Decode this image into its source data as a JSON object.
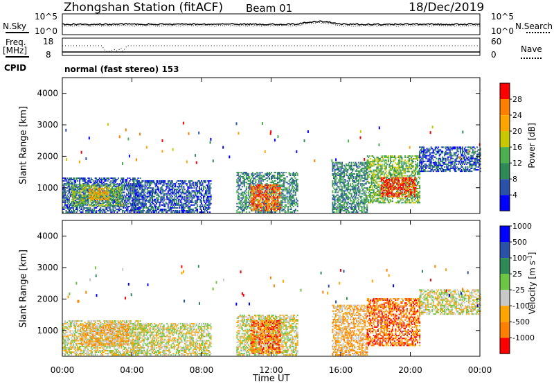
{
  "header": {
    "title": "Zhongshan Station (fitACF)",
    "beam": "Beam 01",
    "date": "18/Dec/2019"
  },
  "noise_panel": {
    "left_label": "N.Sky",
    "right_label": "N.Search",
    "left_ticks": [
      "10^5",
      "10^0"
    ],
    "right_ticks": [
      "10^5",
      "10^0"
    ]
  },
  "freq_panel": {
    "left_label_line1": "Freq.",
    "left_label_line2": "[MHz]",
    "right_label": "Nave",
    "left_ticks": [
      "18",
      "8"
    ],
    "right_ticks": [
      "60",
      "0"
    ]
  },
  "cpid": {
    "label": "CPID",
    "program": "normal (fast stereo) 153"
  },
  "x_axis": {
    "label": "Time UT",
    "ticks": [
      "00:00",
      "04:00",
      "08:00",
      "12:00",
      "16:00",
      "20:00",
      "00:00"
    ]
  },
  "colors": {
    "power": [
      "#0000ff",
      "#2a52a8",
      "#2e8b57",
      "#4caf50",
      "#c8c800",
      "#ffa500",
      "#ff7f00",
      "#ff0000"
    ],
    "velocity": [
      "#ff0000",
      "#ff7f00",
      "#ffa500",
      "#c8c8c8",
      "#6cc644",
      "#2e8b57",
      "#2a52a8",
      "#0000ff"
    ]
  },
  "chart_data": [
    {
      "type": "heatmap",
      "title": "Power",
      "xlabel": "Time UT",
      "ylabel": "Slant Range [km]",
      "xlim": [
        0,
        24
      ],
      "ylim": [
        180,
        4500
      ],
      "y_ticks": [
        "1000",
        "2000",
        "3000",
        "4000"
      ],
      "colorbar": {
        "label": "Power [dB]",
        "ticks": [
          "4",
          "8",
          "12",
          "16",
          "20",
          "24",
          "28"
        ]
      },
      "regions": [
        {
          "t": [
            0.0,
            4.5
          ],
          "range": [
            200,
            1300
          ],
          "level": 1
        },
        {
          "t": [
            0.5,
            3.5
          ],
          "range": [
            400,
            1100
          ],
          "level": 3
        },
        {
          "t": [
            1.5,
            2.7
          ],
          "range": [
            600,
            1000
          ],
          "level": 5
        },
        {
          "t": [
            4.0,
            8.5
          ],
          "range": [
            200,
            1200
          ],
          "level": 1
        },
        {
          "t": [
            10.0,
            13.5
          ],
          "range": [
            200,
            1500
          ],
          "level": 2
        },
        {
          "t": [
            10.8,
            12.5
          ],
          "range": [
            250,
            1100
          ],
          "level": 6
        },
        {
          "t": [
            15.5,
            17.5
          ],
          "range": [
            200,
            1800
          ],
          "level": 2
        },
        {
          "t": [
            17.5,
            20.5
          ],
          "range": [
            500,
            2000
          ],
          "level": 3
        },
        {
          "t": [
            18.3,
            20.3
          ],
          "range": [
            700,
            1300
          ],
          "level": 7
        },
        {
          "t": [
            20.5,
            24.0
          ],
          "range": [
            1500,
            2300
          ],
          "level": 1
        }
      ]
    },
    {
      "type": "heatmap",
      "title": "Velocity",
      "xlabel": "Time UT",
      "ylabel": "Slant Range [km]",
      "xlim": [
        0,
        24
      ],
      "ylim": [
        180,
        4500
      ],
      "y_ticks": [
        "1000",
        "2000",
        "3000",
        "4000"
      ],
      "colorbar": {
        "label": "Velocity [m s-1]",
        "ticks": [
          "-1000",
          "-500",
          "-100",
          "-25",
          "25",
          "100",
          "500",
          "1000"
        ]
      },
      "regions": [
        {
          "t": [
            0.0,
            4.5
          ],
          "range": [
            200,
            1300
          ],
          "level": 3
        },
        {
          "t": [
            1.0,
            3.8
          ],
          "range": [
            500,
            1200
          ],
          "level": 2
        },
        {
          "t": [
            4.0,
            8.5
          ],
          "range": [
            200,
            1200
          ],
          "level": 3
        },
        {
          "t": [
            10.0,
            13.5
          ],
          "range": [
            200,
            1500
          ],
          "level": 3
        },
        {
          "t": [
            10.8,
            12.5
          ],
          "range": [
            250,
            1300
          ],
          "level": 1
        },
        {
          "t": [
            15.5,
            17.5
          ],
          "range": [
            200,
            1800
          ],
          "level": 2
        },
        {
          "t": [
            17.5,
            20.5
          ],
          "range": [
            500,
            2000
          ],
          "level": 1
        },
        {
          "t": [
            20.5,
            24.0
          ],
          "range": [
            1500,
            2300
          ],
          "level": 3
        }
      ]
    }
  ]
}
